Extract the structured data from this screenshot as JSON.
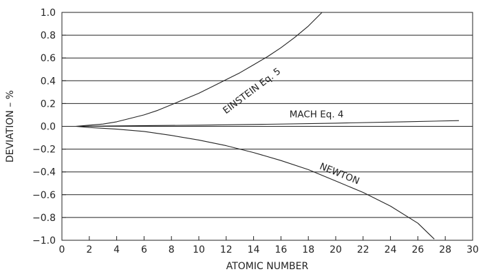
{
  "chart_data": {
    "type": "line",
    "title": "",
    "xlabel": "ATOMIC NUMBER",
    "ylabel": "DEVIATION – %",
    "xlim": [
      0,
      30
    ],
    "ylim": [
      -1.0,
      1.0
    ],
    "x_ticks": [
      0,
      2,
      4,
      6,
      8,
      10,
      12,
      14,
      16,
      18,
      20,
      22,
      24,
      26,
      28,
      30
    ],
    "y_ticks": [
      -1.0,
      -0.8,
      -0.6,
      -0.4,
      -0.2,
      0.0,
      0.2,
      0.4,
      0.6,
      0.8,
      1.0
    ],
    "x_tick_labels": [
      "0",
      "2",
      "4",
      "6",
      "8",
      "10",
      "12",
      "14",
      "16",
      "18",
      "20",
      "22",
      "24",
      "26",
      "28",
      "30"
    ],
    "y_tick_labels": [
      "−1.0",
      "−0.8",
      "−0.6",
      "−0.4",
      "−0.2",
      "0.0",
      "0.2",
      "0.4",
      "0.6",
      "0.8",
      "1.0"
    ],
    "grid": "horizontal",
    "series": [
      {
        "name": "EINSTEIN Eq. 5",
        "color": "#222222",
        "x": [
          1,
          2,
          3,
          4,
          5,
          6,
          7,
          8,
          9,
          10,
          11,
          12,
          13,
          14,
          15,
          16,
          17,
          18,
          19
        ],
        "y": [
          0.0,
          0.01,
          0.02,
          0.04,
          0.07,
          0.1,
          0.14,
          0.19,
          0.24,
          0.29,
          0.35,
          0.41,
          0.47,
          0.54,
          0.61,
          0.69,
          0.78,
          0.88,
          1.0
        ]
      },
      {
        "name": "MACH Eq. 4",
        "color": "#222222",
        "x": [
          1,
          5,
          10,
          15,
          20,
          25,
          29
        ],
        "y": [
          0.0,
          0.005,
          0.01,
          0.018,
          0.028,
          0.04,
          0.05
        ]
      },
      {
        "name": "NEWTON",
        "color": "#222222",
        "x": [
          1,
          2,
          4,
          6,
          8,
          10,
          12,
          14,
          16,
          18,
          20,
          22,
          24,
          26,
          27.2
        ],
        "y": [
          0.0,
          -0.01,
          -0.025,
          -0.045,
          -0.08,
          -0.12,
          -0.17,
          -0.23,
          -0.3,
          -0.38,
          -0.48,
          -0.58,
          -0.7,
          -0.85,
          -0.99
        ]
      }
    ],
    "annotations": [
      {
        "text": "EINSTEIN Eq. 5",
        "x": 14.0,
        "y": 0.29,
        "angle": -37
      },
      {
        "text": "MACH Eq. 4",
        "x": 18.6,
        "y": 0.08,
        "angle": 0
      },
      {
        "text": "NEWTON",
        "x": 20.2,
        "y": -0.44,
        "angle": 22
      }
    ]
  }
}
